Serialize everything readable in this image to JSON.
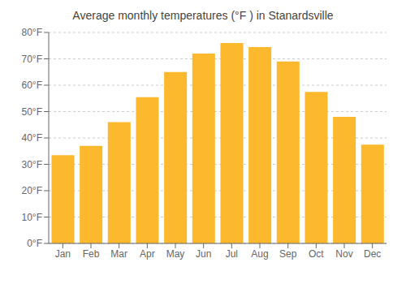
{
  "chart_data": {
    "type": "bar",
    "title": "Average monthly temperatures (°F ) in Stanardsville",
    "categories": [
      "Jan",
      "Feb",
      "Mar",
      "Apr",
      "May",
      "Jun",
      "Jul",
      "Aug",
      "Sep",
      "Oct",
      "Nov",
      "Dec"
    ],
    "values": [
      33.5,
      37.0,
      46.0,
      55.5,
      65.0,
      72.0,
      76.0,
      74.5,
      69.0,
      57.5,
      48.0,
      37.5
    ],
    "color": "#FDB92E",
    "ylim": [
      0,
      80
    ],
    "yticks": [
      {
        "value": 0,
        "label": "0°F"
      },
      {
        "value": 10,
        "label": "10°F"
      },
      {
        "value": 20,
        "label": "20°F"
      },
      {
        "value": 30,
        "label": "30°F"
      },
      {
        "value": 40,
        "label": "40°F"
      },
      {
        "value": 50,
        "label": "50°F"
      },
      {
        "value": 60,
        "label": "60°F"
      },
      {
        "value": 70,
        "label": "70°F"
      },
      {
        "value": 80,
        "label": "80°F"
      }
    ],
    "grid": true
  }
}
